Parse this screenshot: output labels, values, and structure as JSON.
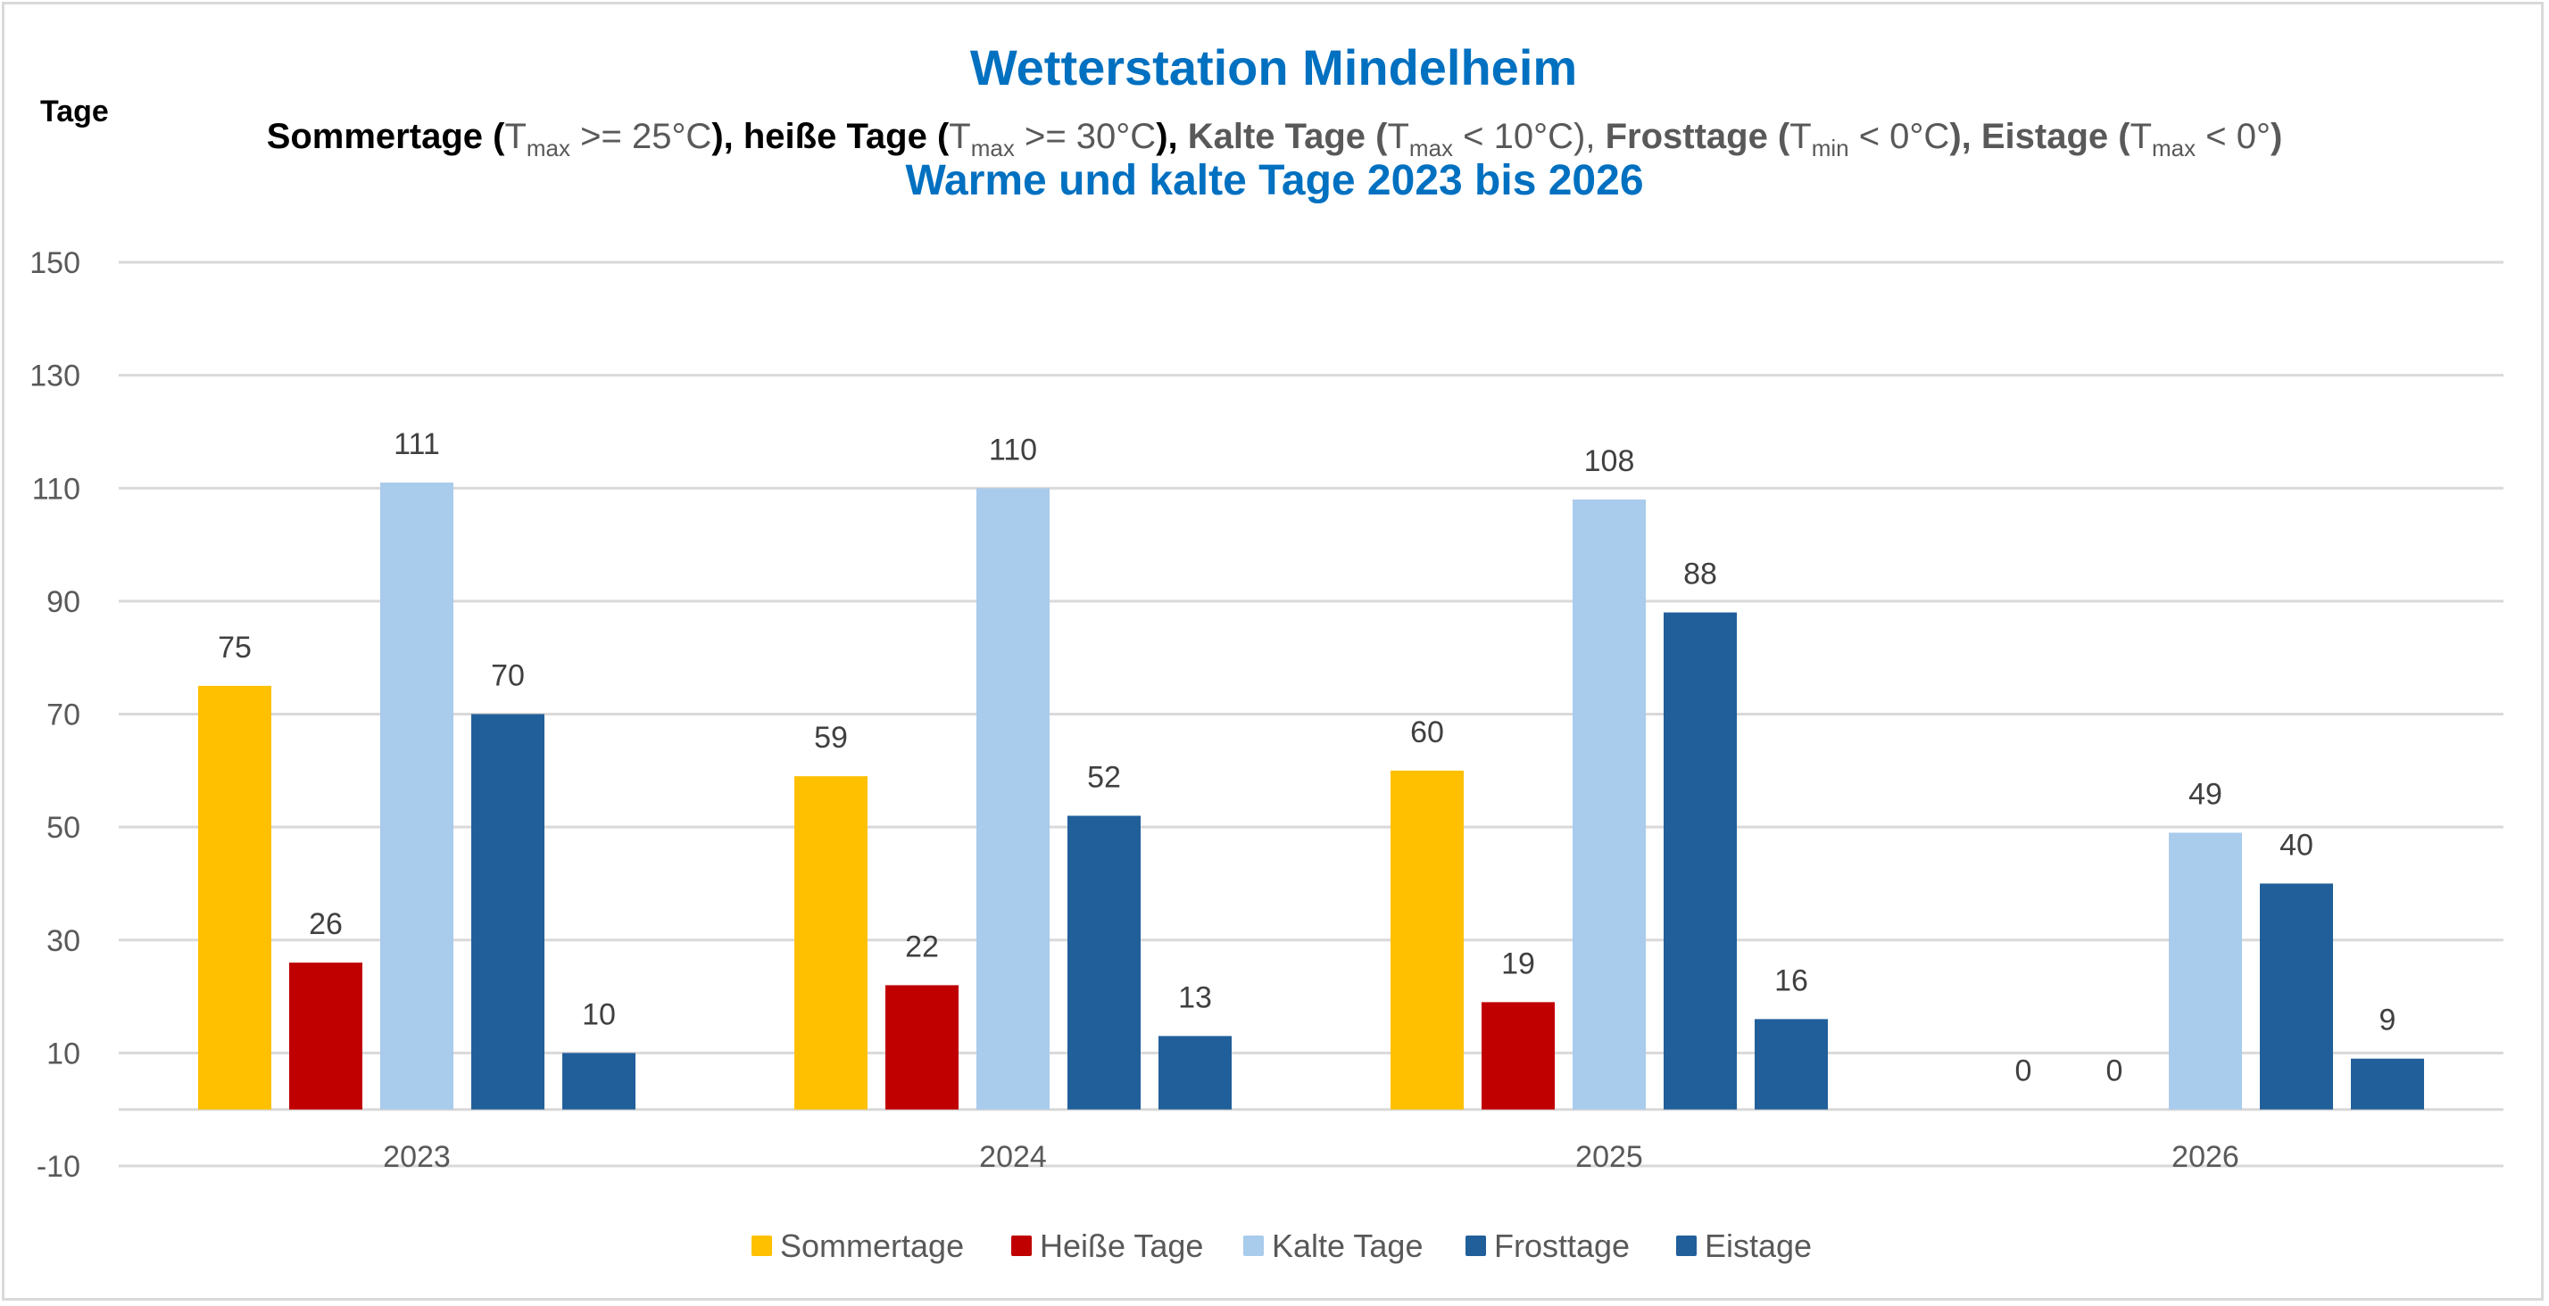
{
  "chart_data": {
    "type": "bar",
    "title": "Wetterstation Mindelheim",
    "subtitle_parts": [
      {
        "text": "Sommertage (",
        "style": "bold-black"
      },
      {
        "text": "T",
        "style": "gray"
      },
      {
        "text": "max",
        "style": "gray-sub"
      },
      {
        "text": " >= 25°C",
        "style": "gray"
      },
      {
        "text": "), heiße Tage (",
        "style": "bold-black"
      },
      {
        "text": "T",
        "style": "gray"
      },
      {
        "text": "max",
        "style": "gray-sub"
      },
      {
        "text": " >= 30°C",
        "style": "gray"
      },
      {
        "text": "), ",
        "style": "bold-black"
      },
      {
        "text": "Kalte Tage (",
        "style": "bold-gray"
      },
      {
        "text": "T",
        "style": "gray"
      },
      {
        "text": "max",
        "style": "gray-sub"
      },
      {
        "text": " < 10°C), ",
        "style": "gray"
      },
      {
        "text": "Frosttage (",
        "style": "bold-gray"
      },
      {
        "text": "T",
        "style": "gray"
      },
      {
        "text": "min",
        "style": "gray-sub"
      },
      {
        "text": " < 0°C",
        "style": "gray"
      },
      {
        "text": "), Eistage (",
        "style": "bold-gray"
      },
      {
        "text": "T",
        "style": "gray"
      },
      {
        "text": "max",
        "style": "gray-sub"
      },
      {
        "text": " < 0°",
        "style": "gray"
      },
      {
        "text": ")",
        "style": "bold-gray"
      }
    ],
    "title2": "Warme und kalte Tage 2023 bis 2026",
    "ylabel": "Tage",
    "xlabel": "",
    "ylim": [
      -10,
      150
    ],
    "yticks": [
      150,
      130,
      110,
      90,
      70,
      50,
      30,
      10,
      -10
    ],
    "grid": true,
    "legend_position": "bottom",
    "categories": [
      "2023",
      "2024",
      "2025",
      "2026"
    ],
    "series": [
      {
        "name": "Sommertage",
        "color": "#FFC000",
        "values": [
          75,
          59,
          60,
          0
        ]
      },
      {
        "name": "Heiße Tage",
        "color": "#C00000",
        "values": [
          26,
          22,
          19,
          0
        ]
      },
      {
        "name": "Kalte Tage",
        "color": "#A9CBEC",
        "values": [
          111,
          110,
          108,
          49
        ]
      },
      {
        "name": "Frosttage",
        "color": "#215F9A",
        "values": [
          70,
          52,
          88,
          40
        ]
      },
      {
        "name": "Eistage",
        "color": "#215F9A",
        "values": [
          10,
          13,
          16,
          9
        ]
      }
    ],
    "title_color": "#0070C0",
    "grid_color": "#D9D9D9"
  }
}
